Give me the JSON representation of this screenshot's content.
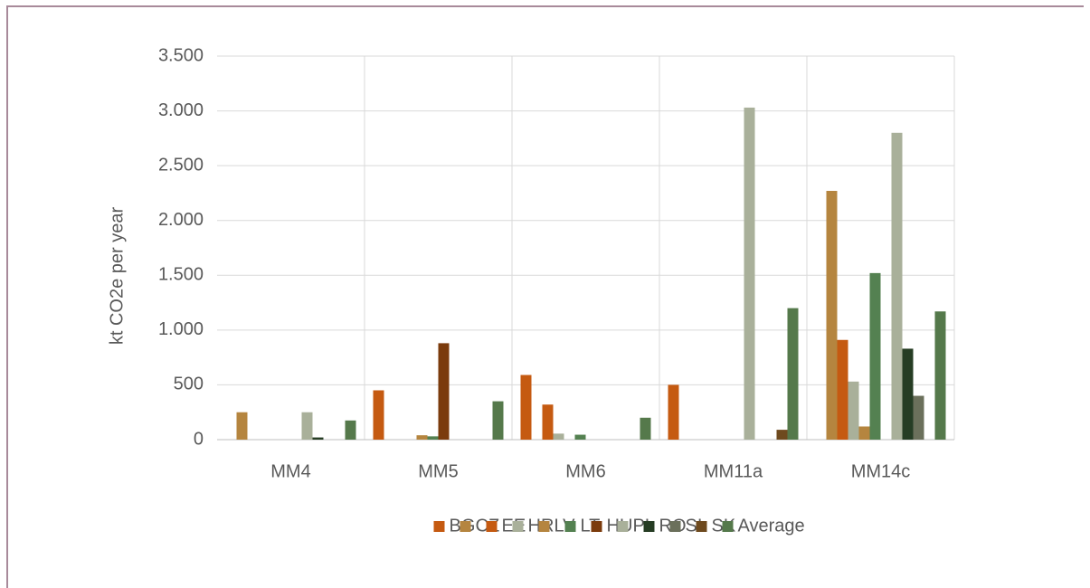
{
  "chart_data": {
    "type": "bar",
    "ylabel": "kt CO2e per year",
    "categories": [
      "MM4",
      "MM5",
      "MM6",
      "MM11a",
      "MM14c"
    ],
    "series": [
      {
        "name": "BG",
        "color": "#c55a11",
        "values": [
          0,
          450,
          590,
          500,
          0
        ]
      },
      {
        "name": "CZ",
        "color": "#b5853f",
        "values": [
          250,
          0,
          0,
          0,
          2270
        ]
      },
      {
        "name": "EE",
        "color": "#c55a11",
        "values": [
          0,
          0,
          320,
          0,
          910
        ]
      },
      {
        "name": "HR",
        "color": "#a9b09a",
        "values": [
          0,
          0,
          55,
          0,
          530
        ]
      },
      {
        "name": "LV",
        "color": "#b5853f",
        "values": [
          0,
          40,
          0,
          0,
          120
        ]
      },
      {
        "name": "LT",
        "color": "#548151",
        "values": [
          0,
          30,
          45,
          0,
          1520
        ]
      },
      {
        "name": "HU",
        "color": "#7b3b0c",
        "values": [
          0,
          880,
          0,
          0,
          0
        ]
      },
      {
        "name": "PL",
        "color": "#a9b09a",
        "values": [
          250,
          0,
          0,
          3030,
          2800
        ]
      },
      {
        "name": "RO",
        "color": "#263d24",
        "values": [
          20,
          0,
          0,
          0,
          830
        ]
      },
      {
        "name": "SI",
        "color": "#6b705b",
        "values": [
          0,
          0,
          0,
          0,
          400
        ]
      },
      {
        "name": "SK",
        "color": "#6e4a1e",
        "values": [
          0,
          0,
          0,
          90,
          0
        ]
      },
      {
        "name": "Average",
        "color": "#55794b",
        "values": [
          175,
          350,
          200,
          1200,
          1170
        ]
      }
    ],
    "ylim": [
      0,
      3500
    ],
    "yticks": [
      0,
      500,
      {
        "value": 1000,
        "label": "1.000"
      },
      {
        "value": 1500,
        "label": "1.500"
      },
      {
        "value": 2000,
        "label": "2.000"
      },
      {
        "value": 2500,
        "label": "2.500"
      },
      {
        "value": 3000,
        "label": "3.000"
      },
      {
        "value": 3500,
        "label": "3.500"
      }
    ],
    "grid": true,
    "legend": "bottom"
  }
}
